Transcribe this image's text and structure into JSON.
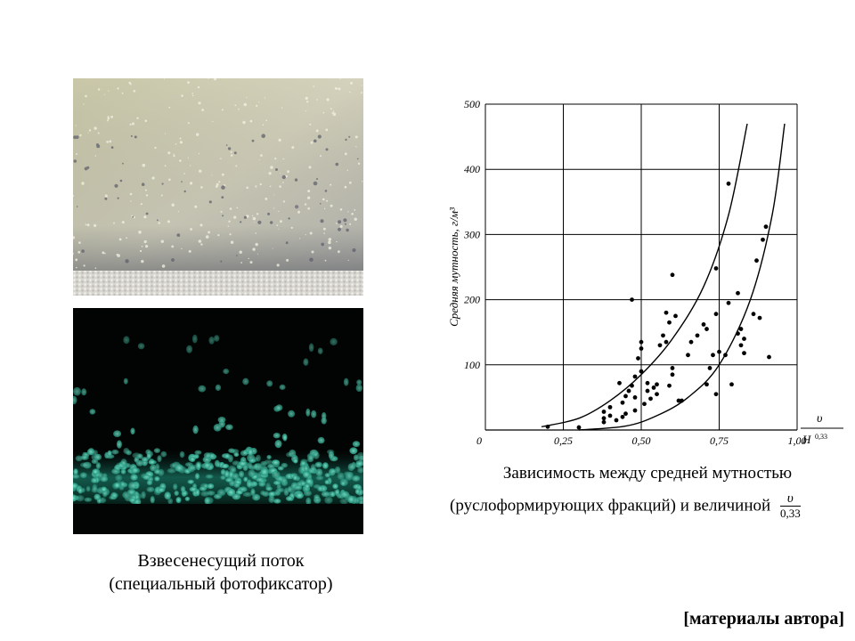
{
  "left_caption": {
    "line1": "Взвесенесущий поток",
    "line2": "(специальный фотофиксатор)"
  },
  "right_caption": {
    "line1": "Зависимость между средней мутностью",
    "line2": "(руслоформирующих фракций) и величиной",
    "fraction_numerator": "υ",
    "fraction_denominator": "0,33"
  },
  "source": "[материалы автора]",
  "chart_data": {
    "type": "scatter",
    "ylabel": "Средняя мутность, г/м³",
    "xlabel_numerator": "υ",
    "xlabel_denominator": "H",
    "xlabel_exponent": "0,33",
    "xlim": [
      0,
      1.0
    ],
    "ylim": [
      0,
      500
    ],
    "x_ticks": [
      "0",
      "0,25",
      "0,50",
      "0,75",
      "1,00"
    ],
    "y_ticks": [
      "100",
      "200",
      "300",
      "400",
      "500"
    ],
    "grid": true,
    "points": [
      [
        0.2,
        5
      ],
      [
        0.3,
        4
      ],
      [
        0.38,
        12
      ],
      [
        0.38,
        18
      ],
      [
        0.38,
        28
      ],
      [
        0.4,
        22
      ],
      [
        0.4,
        35
      ],
      [
        0.42,
        15
      ],
      [
        0.43,
        72
      ],
      [
        0.44,
        20
      ],
      [
        0.44,
        42
      ],
      [
        0.45,
        25
      ],
      [
        0.45,
        52
      ],
      [
        0.46,
        60
      ],
      [
        0.47,
        200
      ],
      [
        0.47,
        68
      ],
      [
        0.48,
        82
      ],
      [
        0.48,
        30
      ],
      [
        0.48,
        50
      ],
      [
        0.49,
        110
      ],
      [
        0.5,
        125
      ],
      [
        0.5,
        135
      ],
      [
        0.5,
        90
      ],
      [
        0.51,
        40
      ],
      [
        0.52,
        60
      ],
      [
        0.52,
        72
      ],
      [
        0.53,
        48
      ],
      [
        0.54,
        65
      ],
      [
        0.55,
        55
      ],
      [
        0.55,
        70
      ],
      [
        0.56,
        130
      ],
      [
        0.57,
        145
      ],
      [
        0.58,
        135
      ],
      [
        0.58,
        180
      ],
      [
        0.59,
        165
      ],
      [
        0.59,
        68
      ],
      [
        0.6,
        238
      ],
      [
        0.6,
        95
      ],
      [
        0.6,
        85
      ],
      [
        0.61,
        175
      ],
      [
        0.62,
        45
      ],
      [
        0.63,
        45
      ],
      [
        0.65,
        115
      ],
      [
        0.66,
        135
      ],
      [
        0.68,
        145
      ],
      [
        0.7,
        162
      ],
      [
        0.71,
        155
      ],
      [
        0.71,
        70
      ],
      [
        0.72,
        95
      ],
      [
        0.73,
        115
      ],
      [
        0.74,
        248
      ],
      [
        0.74,
        55
      ],
      [
        0.74,
        178
      ],
      [
        0.75,
        120
      ],
      [
        0.77,
        115
      ],
      [
        0.78,
        378
      ],
      [
        0.78,
        195
      ],
      [
        0.79,
        70
      ],
      [
        0.81,
        210
      ],
      [
        0.81,
        148
      ],
      [
        0.82,
        155
      ],
      [
        0.82,
        130
      ],
      [
        0.83,
        118
      ],
      [
        0.83,
        140
      ],
      [
        0.86,
        178
      ],
      [
        0.87,
        260
      ],
      [
        0.88,
        172
      ],
      [
        0.89,
        292
      ],
      [
        0.9,
        312
      ],
      [
        0.91,
        112
      ]
    ],
    "curves": [
      [
        [
          0.18,
          5
        ],
        [
          0.3,
          18
        ],
        [
          0.4,
          45
        ],
        [
          0.5,
          85
        ],
        [
          0.6,
          140
        ],
        [
          0.7,
          220
        ],
        [
          0.78,
          330
        ],
        [
          0.84,
          470
        ]
      ],
      [
        [
          0.3,
          0
        ],
        [
          0.45,
          6
        ],
        [
          0.55,
          22
        ],
        [
          0.65,
          50
        ],
        [
          0.75,
          100
        ],
        [
          0.85,
          200
        ],
        [
          0.92,
          330
        ],
        [
          0.96,
          470
        ]
      ]
    ]
  }
}
